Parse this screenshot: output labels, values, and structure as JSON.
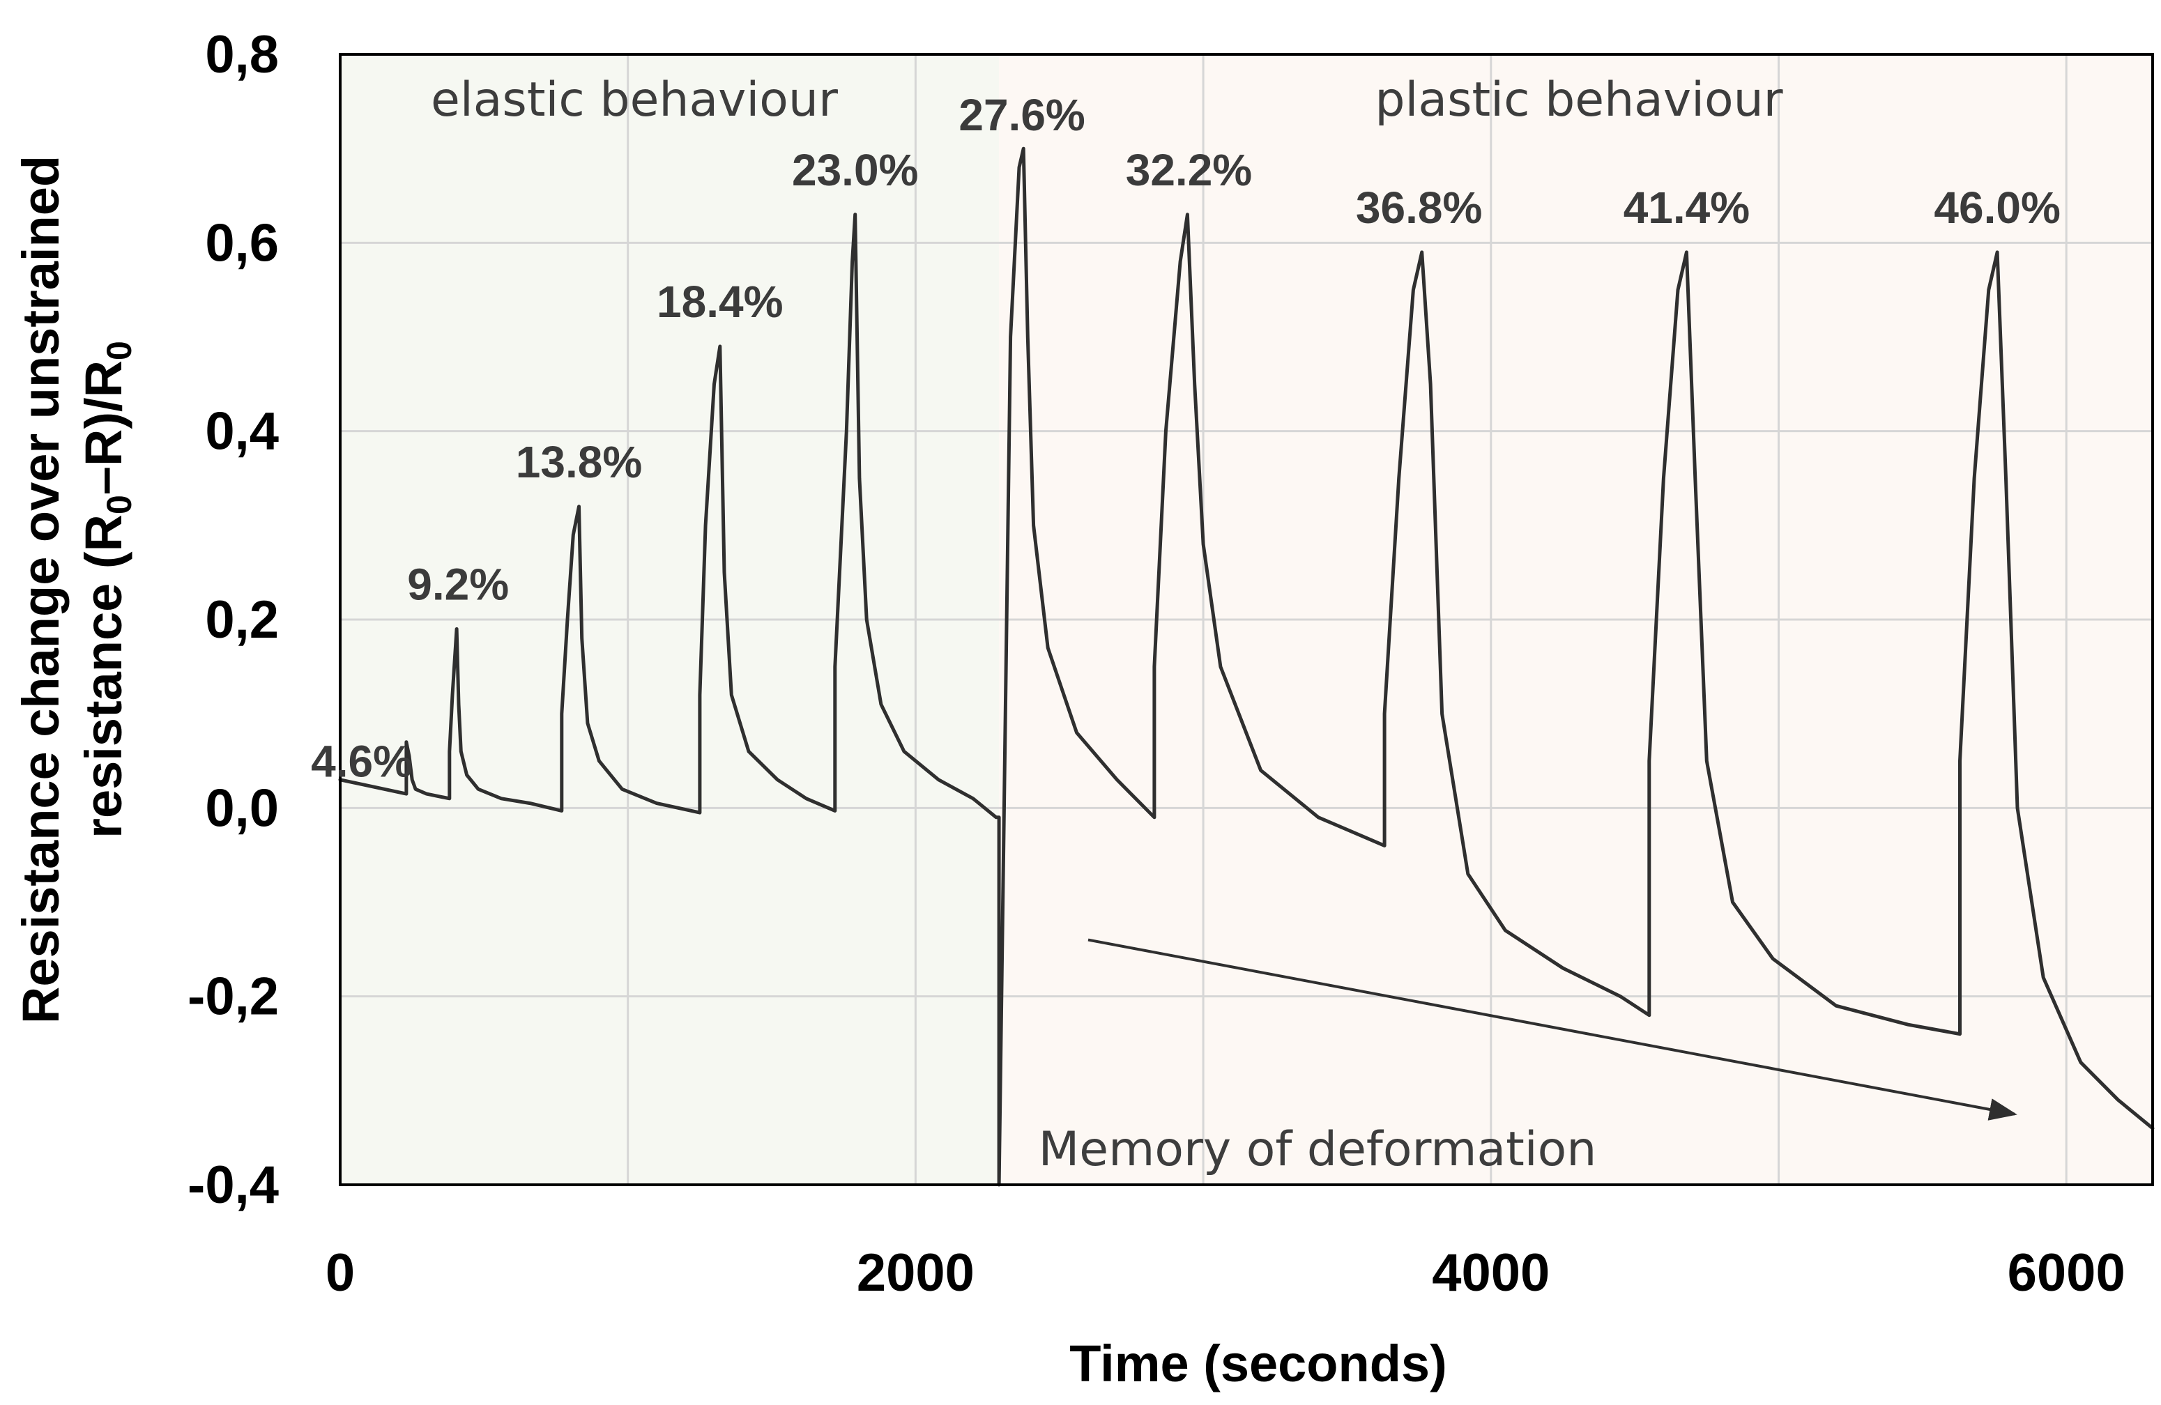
{
  "chart_data": {
    "type": "line",
    "xlabel": "Time (seconds)",
    "ylabel_line1": "Resistance change over unstrained",
    "ylabel_line2_pre": "resistance (R",
    "ylabel_sub1": "0",
    "ylabel_line2_mid": "–R)/R",
    "ylabel_sub2": "0",
    "xlim": [
      0,
      6300
    ],
    "ylim": [
      -0.4,
      0.8
    ],
    "x_ticks": [
      0,
      2000,
      4000,
      6000
    ],
    "x_tick_labels": [
      "0",
      "2000",
      "4000",
      "6000"
    ],
    "x_grid": [
      0,
      1000,
      2000,
      3000,
      4000,
      5000,
      6000
    ],
    "y_ticks": [
      -0.4,
      -0.2,
      0.0,
      0.2,
      0.4,
      0.6,
      0.8
    ],
    "y_tick_labels": [
      "-0,4",
      "-0,2",
      "0,0",
      "0,2",
      "0,4",
      "0,6",
      "0,8"
    ],
    "grid": true,
    "regions": [
      {
        "name": "elastic behaviour",
        "x_start": 0,
        "x_end": 2290,
        "color": "#f6f8f2"
      },
      {
        "name": "plastic behaviour",
        "x_start": 2290,
        "x_end": 6300,
        "color": "#fdf8f4"
      }
    ],
    "cycles": [
      {
        "strain": "4.6%",
        "start_time": 230,
        "base": 0.015,
        "peak": 0.07,
        "peak_time": 245
      },
      {
        "strain": "9.2%",
        "start_time": 380,
        "base": 0.01,
        "peak": 0.19,
        "peak_time": 410
      },
      {
        "strain": "13.8%",
        "start_time": 770,
        "base": -0.003,
        "peak": 0.32,
        "peak_time": 830
      },
      {
        "strain": "18.4%",
        "start_time": 1250,
        "base": -0.005,
        "peak": 0.49,
        "peak_time": 1320
      },
      {
        "strain": "23.0%",
        "start_time": 1720,
        "base": -0.003,
        "peak": 0.63,
        "peak_time": 1790
      },
      {
        "strain": "27.6%",
        "start_time": 2290,
        "base": -0.01,
        "peak": 0.7,
        "peak_time": 2370
      },
      {
        "strain": "32.2%",
        "start_time": 2830,
        "base": -0.01,
        "peak": 0.63,
        "peak_time": 2950
      },
      {
        "strain": "36.8%",
        "start_time": 3630,
        "base": -0.04,
        "peak": 0.59,
        "peak_time": 3750
      },
      {
        "strain": "41.4%",
        "start_time": 4550,
        "base": -0.22,
        "peak": 0.59,
        "peak_time": 4680
      },
      {
        "strain": "46.0%",
        "start_time": 5630,
        "base": -0.24,
        "peak": 0.59,
        "peak_time": 5760
      }
    ],
    "series": [
      {
        "name": "resistance change",
        "x": [
          0,
          230,
          230,
          240,
          250,
          262,
          300,
          380,
          380,
          390,
          405,
          412,
          420,
          440,
          480,
          560,
          660,
          770,
          770,
          790,
          810,
          830,
          840,
          860,
          900,
          980,
          1100,
          1250,
          1250,
          1270,
          1300,
          1320,
          1335,
          1360,
          1420,
          1520,
          1620,
          1720,
          1720,
          1760,
          1780,
          1790,
          1805,
          1830,
          1880,
          1960,
          2080,
          2200,
          2280,
          2290,
          2290,
          2330,
          2360,
          2375,
          2390,
          2410,
          2460,
          2560,
          2700,
          2830,
          2830,
          2870,
          2920,
          2945,
          2970,
          3000,
          3060,
          3200,
          3400,
          3630,
          3630,
          3680,
          3730,
          3760,
          3790,
          3830,
          3920,
          4050,
          4250,
          4450,
          4550,
          4550,
          4600,
          4650,
          4680,
          4710,
          4750,
          4840,
          4980,
          5200,
          5450,
          5630,
          5630,
          5680,
          5730,
          5760,
          5790,
          5830,
          5920,
          6050,
          6180,
          6300
        ],
        "y": [
          0.03,
          0.015,
          0.07,
          0.055,
          0.03,
          0.02,
          0.015,
          0.01,
          0.06,
          0.12,
          0.19,
          0.11,
          0.06,
          0.035,
          0.02,
          0.01,
          0.005,
          -0.003,
          0.1,
          0.2,
          0.29,
          0.32,
          0.18,
          0.09,
          0.05,
          0.02,
          0.005,
          -0.005,
          0.12,
          0.3,
          0.45,
          0.49,
          0.25,
          0.12,
          0.06,
          0.03,
          0.01,
          -0.003,
          0.15,
          0.4,
          0.58,
          0.63,
          0.35,
          0.2,
          0.11,
          0.06,
          0.03,
          0.01,
          -0.01,
          -0.01,
          -0.4,
          0.5,
          0.68,
          0.7,
          0.5,
          0.3,
          0.17,
          0.08,
          0.03,
          -0.01,
          0.15,
          0.4,
          0.58,
          0.63,
          0.45,
          0.28,
          0.15,
          0.04,
          -0.01,
          -0.04,
          0.1,
          0.35,
          0.55,
          0.59,
          0.45,
          0.1,
          -0.07,
          -0.13,
          -0.17,
          -0.2,
          -0.22,
          0.05,
          0.35,
          0.55,
          0.59,
          0.35,
          0.05,
          -0.1,
          -0.16,
          -0.21,
          -0.23,
          -0.24,
          0.05,
          0.35,
          0.55,
          0.59,
          0.35,
          0.0,
          -0.18,
          -0.27,
          -0.31,
          -0.34
        ]
      }
    ],
    "annotations": {
      "elastic_label": "elastic behaviour",
      "plastic_label": "plastic behaviour",
      "memory_label": "Memory of deformation",
      "arrow_from": {
        "x": 2600,
        "y": -0.14
      },
      "arrow_to": {
        "x": 5820,
        "y": -0.325
      }
    }
  },
  "colors": {
    "line": "#2f2f2f",
    "grid": "#d6d6d6",
    "elastic_fill": "#f6f8f2",
    "plastic_fill": "#fdf8f4",
    "axis": "#000000"
  }
}
